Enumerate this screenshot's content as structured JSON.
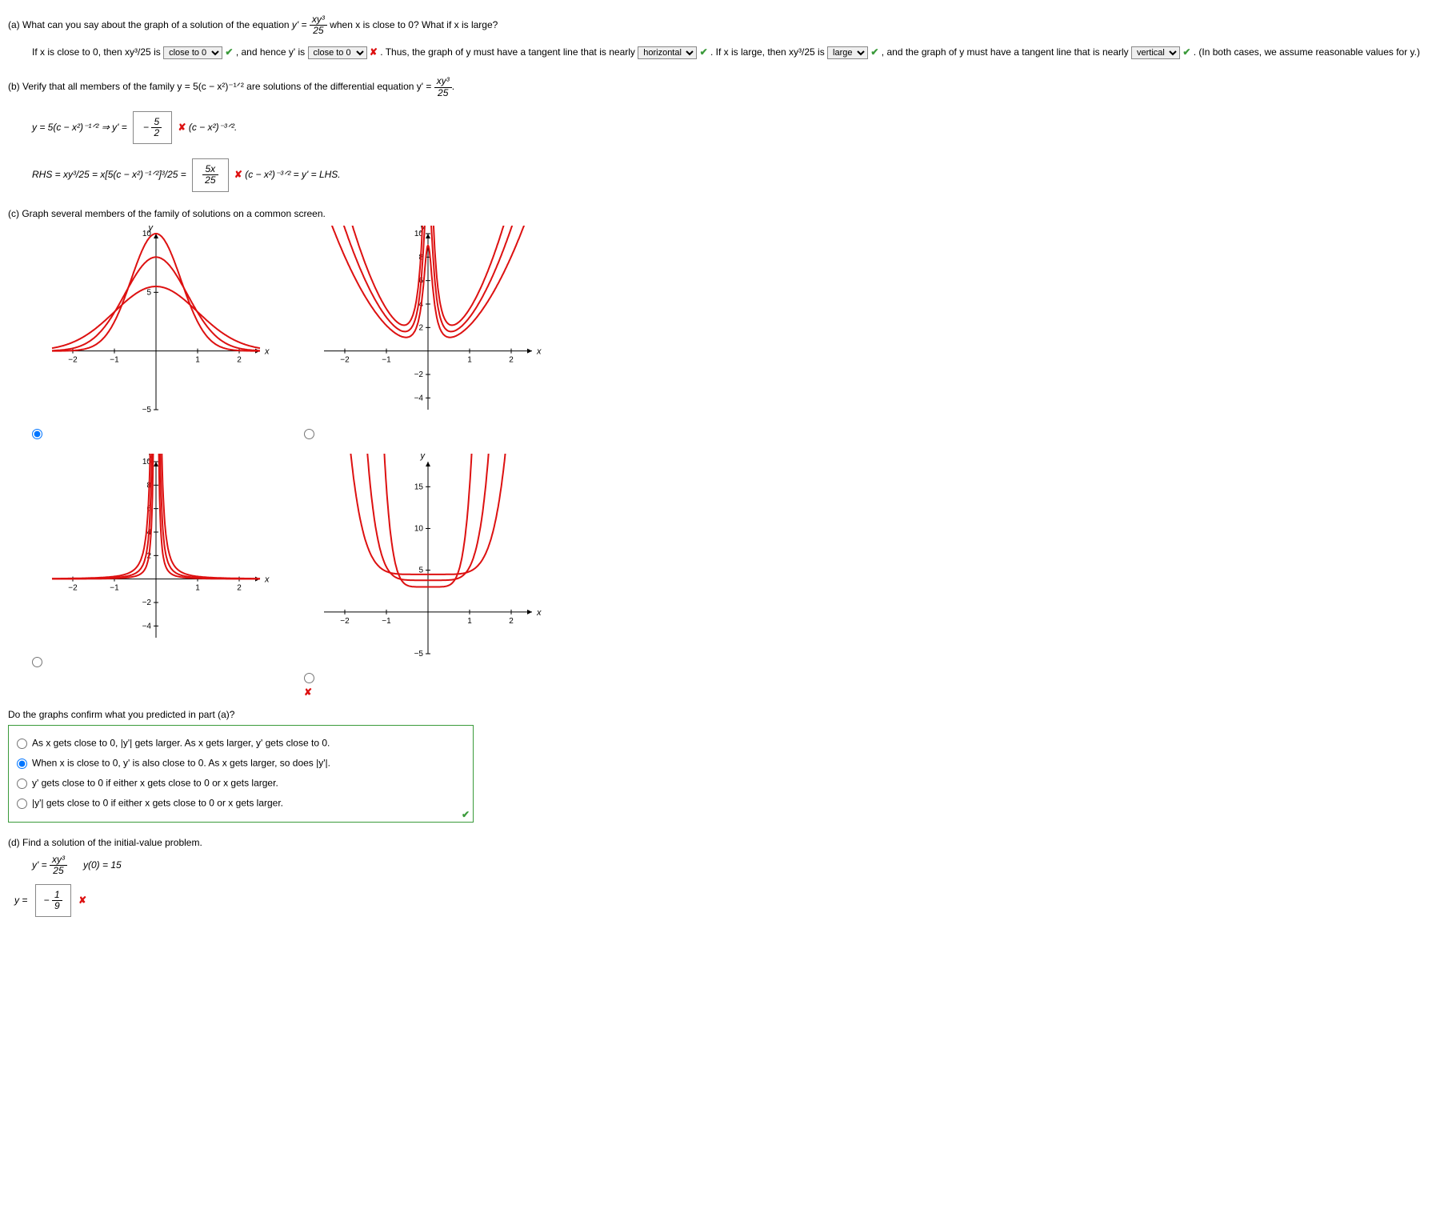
{
  "partA": {
    "prompt_pre": "(a) What can you say about the graph of a solution of the equation ",
    "prompt_eq": "y' = ",
    "frac_num": "xy³",
    "frac_den": "25",
    "prompt_post": " when x is close to 0? What if x is large?",
    "line1_a": "If x is close to 0, then xy³/25 is ",
    "sel1": "close to 0",
    "line1_b": " , and hence y' is ",
    "sel2": "close to 0",
    "line1_c": " . Thus, the graph of y must have a tangent line that is nearly ",
    "sel3": "horizontal",
    "line1_d": " . If x is large, then xy³/25 is ",
    "sel4": "large",
    "line1_e": " , and the graph of y must have a tangent line that is nearly ",
    "sel5": "vertical",
    "line1_f": " . (In both cases, we assume reasonable values for y.)"
  },
  "partB": {
    "prompt": "(b) Verify that all members of the family y = 5(c − x²)⁻¹ᐟ² are solutions of the differential equation y' = ",
    "frac_num": "xy³",
    "frac_den": "25",
    "prompt_end": ".",
    "row1_l": "y = 5(c − x²)⁻¹ᐟ²    ⇒     y' = ",
    "box1_num": "5",
    "box1_den": "2",
    "box1_neg": "−",
    "row1_r": "   (c − x²)⁻³ᐟ².",
    "row2_l": "RHS = xy³/25 = x[5(c − x²)⁻¹ᐟ²]³/25 = ",
    "box2_num": "5x",
    "box2_den": "25",
    "row2_r": "   (c − x²)⁻³ᐟ² = y' = LHS."
  },
  "partC": {
    "prompt": "(c) Graph several members of the family of solutions on a common screen.",
    "confirm_q": "Do the graphs confirm what you predicted in part (a)?",
    "opt1": "As x gets close to 0, |y'| gets larger. As x gets larger, y' gets close to 0.",
    "opt2": "When x is close to 0, y' is also close to 0. As x gets larger, so does |y'|.",
    "opt3": "y' gets close to 0 if either x gets close to 0 or x gets larger.",
    "opt4": "|y'| gets close to 0 if either x gets close to 0 or x gets larger.",
    "selected": 2,
    "axes": {
      "xmin": -2.5,
      "xmax": 2.5,
      "xticks": [
        -2,
        -1,
        1,
        2
      ]
    },
    "curve_color": "#d11",
    "g1": {
      "ymin": -5,
      "ymax": 10,
      "yticks": [
        -5,
        5,
        10
      ],
      "curves": [
        {
          "c": 4.0,
          "scale": 5
        },
        {
          "c": 3.0,
          "scale": 5
        },
        {
          "c": 2.2,
          "scale": 5
        }
      ],
      "label_y10": "10"
    },
    "g2": {
      "ymin": -5,
      "ymax": 10,
      "yticks": [
        -4,
        -2,
        2,
        4,
        6,
        8,
        10
      ]
    },
    "g3": {
      "ymin": -5,
      "ymax": 10,
      "yticks": [
        -4,
        -2,
        2,
        4,
        6,
        8,
        10
      ]
    },
    "g4": {
      "ymin": -5,
      "ymax": 18,
      "yticks": [
        -5,
        5,
        10,
        15
      ]
    }
  },
  "partD": {
    "prompt": "(d) Find a solution of the initial-value problem.",
    "eq1": "y' = ",
    "frac_num": "xy³",
    "frac_den": "25",
    "ic": "y(0) = 15",
    "ans_pre": "y = ",
    "ans_neg": "−",
    "ans_num": "1",
    "ans_den": "9"
  }
}
